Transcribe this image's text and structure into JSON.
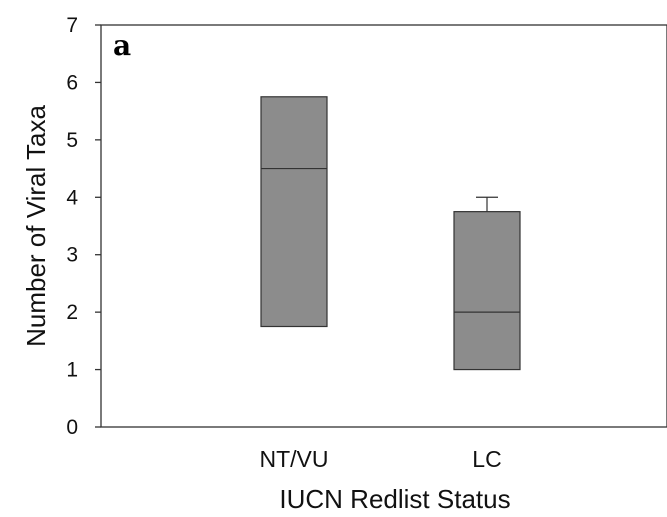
{
  "panel_label": "a",
  "chart_data": {
    "type": "box",
    "xlabel": "IUCN Redlist Status",
    "ylabel": "Number of Viral Taxa",
    "ylim": [
      0,
      7
    ],
    "yticks": [
      0,
      1,
      2,
      3,
      4,
      5,
      6,
      7
    ],
    "categories": [
      "NT/VU",
      "LC"
    ],
    "boxes": [
      {
        "category": "NT/VU",
        "q1": 1.75,
        "median": 4.5,
        "q3": 5.75,
        "whisker_high": null
      },
      {
        "category": "LC",
        "q1": 1.0,
        "median": 2.0,
        "q3": 3.75,
        "whisker_high": 4.0
      }
    ],
    "grid": false,
    "box_color": "#8c8c8c",
    "line_color": "#333333"
  }
}
